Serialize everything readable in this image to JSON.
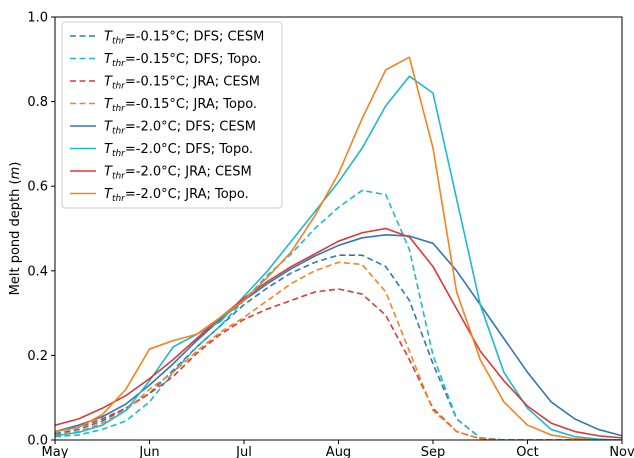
{
  "chart_data": {
    "type": "line",
    "ylabel_text": "Melt pond depth (",
    "ylabel_var": "m",
    "ylabel_close": ")",
    "ylim": [
      0,
      1.0
    ],
    "xlim": [
      0,
      6
    ],
    "x_ticks": [
      {
        "x": 0,
        "label": "May"
      },
      {
        "x": 1,
        "label": "Jun"
      },
      {
        "x": 2,
        "label": "Jul"
      },
      {
        "x": 3,
        "label": "Aug"
      },
      {
        "x": 4,
        "label": "Sep"
      },
      {
        "x": 5,
        "label": "Oct"
      },
      {
        "x": 6,
        "label": "Nov"
      }
    ],
    "y_ticks": [
      {
        "y": 0.0,
        "label": "0.0"
      },
      {
        "y": 0.2,
        "label": "0.2"
      },
      {
        "y": 0.4,
        "label": "0.4"
      },
      {
        "y": 0.6,
        "label": "0.6"
      },
      {
        "y": 0.8,
        "label": "0.8"
      },
      {
        "y": 1.0,
        "label": "1.0"
      }
    ],
    "legend_position": "upper-left",
    "x": [
      0,
      0.25,
      0.5,
      0.75,
      1.0,
      1.25,
      1.5,
      1.75,
      2.0,
      2.25,
      2.5,
      2.75,
      3.0,
      3.25,
      3.5,
      3.75,
      4.0,
      4.25,
      4.5,
      4.75,
      5.0,
      5.25,
      5.5,
      5.75,
      6.0
    ],
    "series": [
      {
        "name": "T_thr=-0.15°C; DFS; CESM",
        "label_sub": "thr",
        "label_rest": "=-0.15°C; DFS; CESM",
        "color": "#2f78b7",
        "dash": "dashed",
        "values": [
          0.015,
          0.025,
          0.045,
          0.075,
          0.11,
          0.165,
          0.22,
          0.27,
          0.32,
          0.36,
          0.395,
          0.42,
          0.437,
          0.437,
          0.41,
          0.33,
          0.18,
          0.05,
          0.005,
          0,
          0,
          0,
          0,
          0,
          0
        ]
      },
      {
        "name": "T_thr=-0.15°C; DFS; Topo.",
        "label_sub": "thr",
        "label_rest": "=-0.15°C; DFS; Topo.",
        "color": "#1fb8cc",
        "dash": "dashed",
        "values": [
          0.008,
          0.012,
          0.025,
          0.045,
          0.09,
          0.16,
          0.22,
          0.27,
          0.33,
          0.39,
          0.44,
          0.5,
          0.55,
          0.59,
          0.58,
          0.45,
          0.2,
          0.05,
          0.005,
          0,
          0,
          0,
          0,
          0,
          0
        ]
      },
      {
        "name": "T_thr=-0.15°C; JRA; CESM",
        "label_sub": "thr",
        "label_rest": "=-0.15°C; JRA; CESM",
        "color": "#d93a3a",
        "dash": "dashed",
        "values": [
          0.02,
          0.03,
          0.05,
          0.075,
          0.11,
          0.15,
          0.205,
          0.25,
          0.285,
          0.31,
          0.33,
          0.35,
          0.357,
          0.345,
          0.295,
          0.19,
          0.075,
          0.02,
          0.003,
          0,
          0,
          0,
          0,
          0,
          0
        ]
      },
      {
        "name": "T_thr=-0.15°C; JRA; Topo.",
        "label_sub": "thr",
        "label_rest": "=-0.15°C; JRA; Topo.",
        "color": "#f5821f",
        "dash": "dashed",
        "values": [
          0.012,
          0.02,
          0.04,
          0.07,
          0.12,
          0.16,
          0.21,
          0.255,
          0.29,
          0.33,
          0.37,
          0.4,
          0.42,
          0.415,
          0.35,
          0.21,
          0.07,
          0.02,
          0.003,
          0,
          0,
          0,
          0,
          0,
          0
        ]
      },
      {
        "name": "T_thr=-2.0°C; DFS; CESM",
        "label_sub": "thr",
        "label_rest": "=-2.0°C; DFS; CESM",
        "color": "#2f78b7",
        "dash": "solid",
        "values": [
          0.02,
          0.035,
          0.055,
          0.085,
          0.13,
          0.18,
          0.235,
          0.285,
          0.33,
          0.37,
          0.405,
          0.435,
          0.46,
          0.478,
          0.485,
          0.482,
          0.465,
          0.4,
          0.32,
          0.24,
          0.16,
          0.09,
          0.05,
          0.025,
          0.01
        ]
      },
      {
        "name": "T_thr=-2.0°C; DFS; Topo.",
        "label_sub": "thr",
        "label_rest": "=-2.0°C; DFS; Topo.",
        "color": "#1fb8cc",
        "dash": "solid",
        "values": [
          0.01,
          0.018,
          0.035,
          0.07,
          0.14,
          0.22,
          0.25,
          0.28,
          0.34,
          0.4,
          0.47,
          0.54,
          0.61,
          0.69,
          0.79,
          0.86,
          0.82,
          0.57,
          0.32,
          0.16,
          0.075,
          0.025,
          0.008,
          0.002,
          0
        ]
      },
      {
        "name": "T_thr=-2.0°C; JRA; CESM",
        "label_sub": "thr",
        "label_rest": "=-2.0°C; JRA; CESM",
        "color": "#d93a3a",
        "dash": "solid",
        "values": [
          0.035,
          0.05,
          0.075,
          0.105,
          0.145,
          0.19,
          0.24,
          0.29,
          0.335,
          0.375,
          0.41,
          0.44,
          0.47,
          0.49,
          0.5,
          0.48,
          0.41,
          0.31,
          0.21,
          0.14,
          0.08,
          0.04,
          0.02,
          0.01,
          0.005
        ]
      },
      {
        "name": "T_thr=-2.0°C; JRA; Topo.",
        "label_sub": "thr",
        "label_rest": "=-2.0°C; JRA; Topo.",
        "color": "#f5821f",
        "dash": "solid",
        "values": [
          0.02,
          0.03,
          0.06,
          0.12,
          0.215,
          0.235,
          0.25,
          0.29,
          0.33,
          0.385,
          0.445,
          0.53,
          0.63,
          0.76,
          0.875,
          0.905,
          0.69,
          0.35,
          0.19,
          0.09,
          0.035,
          0.012,
          0.003,
          0,
          0
        ]
      }
    ]
  }
}
